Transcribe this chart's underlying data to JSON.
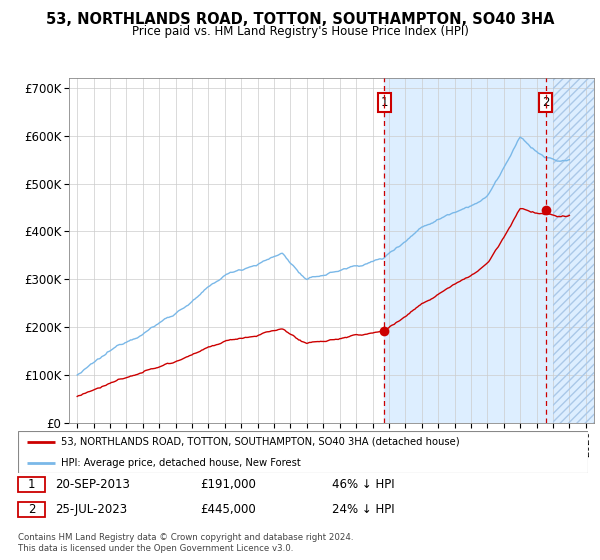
{
  "title": "53, NORTHLANDS ROAD, TOTTON, SOUTHAMPTON, SO40 3HA",
  "subtitle": "Price paid vs. HM Land Registry's House Price Index (HPI)",
  "hpi_color": "#7ab8e8",
  "hpi_fill_color": "#ddeeff",
  "price_color": "#cc0000",
  "vline_color": "#cc0000",
  "transaction1_date": 2013.72,
  "transaction1_price": 191000,
  "transaction2_date": 2023.56,
  "transaction2_price": 445000,
  "blue_shade_start": 2013.72,
  "hatch_start": 2024.0,
  "ylim": [
    0,
    720000
  ],
  "yticks": [
    0,
    100000,
    200000,
    300000,
    400000,
    500000,
    600000,
    700000
  ],
  "ytick_labels": [
    "£0",
    "£100K",
    "£200K",
    "£300K",
    "£400K",
    "£500K",
    "£600K",
    "£700K"
  ],
  "xmin": 1994.5,
  "xmax": 2026.5,
  "legend_line1": "53, NORTHLANDS ROAD, TOTTON, SOUTHAMPTON, SO40 3HA (detached house)",
  "legend_line2": "HPI: Average price, detached house, New Forest",
  "footnote": "Contains HM Land Registry data © Crown copyright and database right 2024.\nThis data is licensed under the Open Government Licence v3.0."
}
